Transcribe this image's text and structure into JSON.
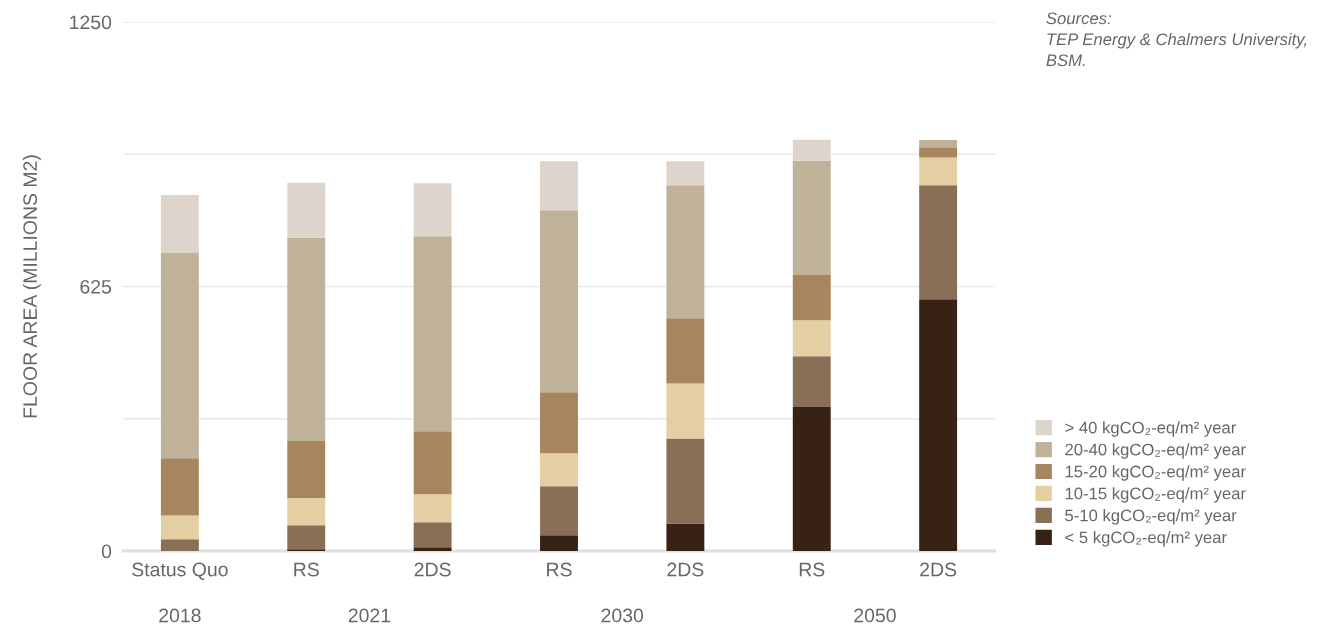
{
  "chart_data": {
    "type": "bar",
    "stacked": true,
    "ylabel": "FLOOR AREA (MILLIONS M2)",
    "categories": [
      "Status Quo",
      "RS",
      "2DS",
      "RS",
      "2DS",
      "RS",
      "2DS"
    ],
    "series": [
      {
        "name": "< 5 kgCO₂-eq/m² year",
        "color": "#382216",
        "values": [
          0,
          4,
          9,
          37,
          65,
          340,
          595
        ]
      },
      {
        "name": "5-10 kgCO₂-eq/m² year",
        "color": "#8a6f57",
        "values": [
          28,
          57,
          59,
          116,
          201,
          120,
          269
        ]
      },
      {
        "name": "10-15 kgCO₂-eq/m² year",
        "color": "#e4cfa3",
        "values": [
          56,
          64,
          66,
          78,
          130,
          85,
          66
        ]
      },
      {
        "name": "15-20 kgCO₂-eq/m² year",
        "color": "#a7855f",
        "values": [
          135,
          135,
          149,
          144,
          154,
          107,
          24
        ]
      },
      {
        "name": "20-40 kgCO₂-eq/m² year",
        "color": "#c0b299",
        "values": [
          485,
          480,
          461,
          430,
          314,
          270,
          17
        ]
      },
      {
        "name": "> 40 kgCO₂-eq/m² year",
        "color": "#ddd5cb",
        "values": [
          137,
          130,
          125,
          116,
          57,
          50,
          0
        ]
      }
    ],
    "ylim": [
      0,
      1250
    ],
    "yticks": [
      0,
      {
        "value": 312.5,
        "label": null
      },
      625,
      {
        "value": 937.5,
        "label": null
      },
      1250
    ],
    "grid": "y",
    "legend": "bottom right",
    "annotations": [
      "2018",
      "2021",
      "2030",
      "2050",
      "Sources:\nTEP Energy & Chalmers University,\nBSM."
    ]
  }
}
